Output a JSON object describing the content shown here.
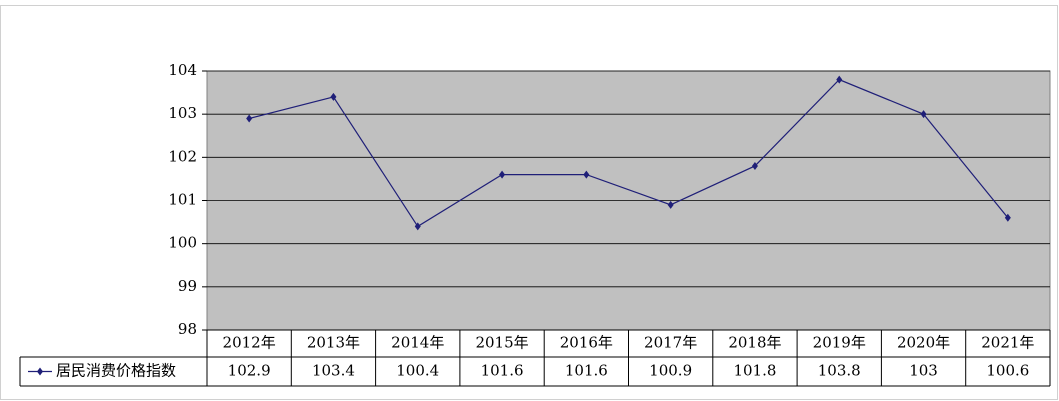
{
  "chart_data": {
    "type": "line",
    "categories": [
      "2012年",
      "2013年",
      "2014年",
      "2015年",
      "2016年",
      "2017年",
      "2018年",
      "2019年",
      "2020年",
      "2021年"
    ],
    "series": [
      {
        "name": "居民消费价格指数",
        "color": "#1f1f78",
        "values": [
          102.9,
          103.4,
          100.4,
          101.6,
          101.6,
          100.9,
          101.8,
          103.8,
          103,
          100.6
        ]
      }
    ],
    "ylim": [
      98,
      104
    ],
    "yticks": [
      98,
      99,
      100,
      101,
      102,
      103,
      104
    ],
    "grid": true
  }
}
